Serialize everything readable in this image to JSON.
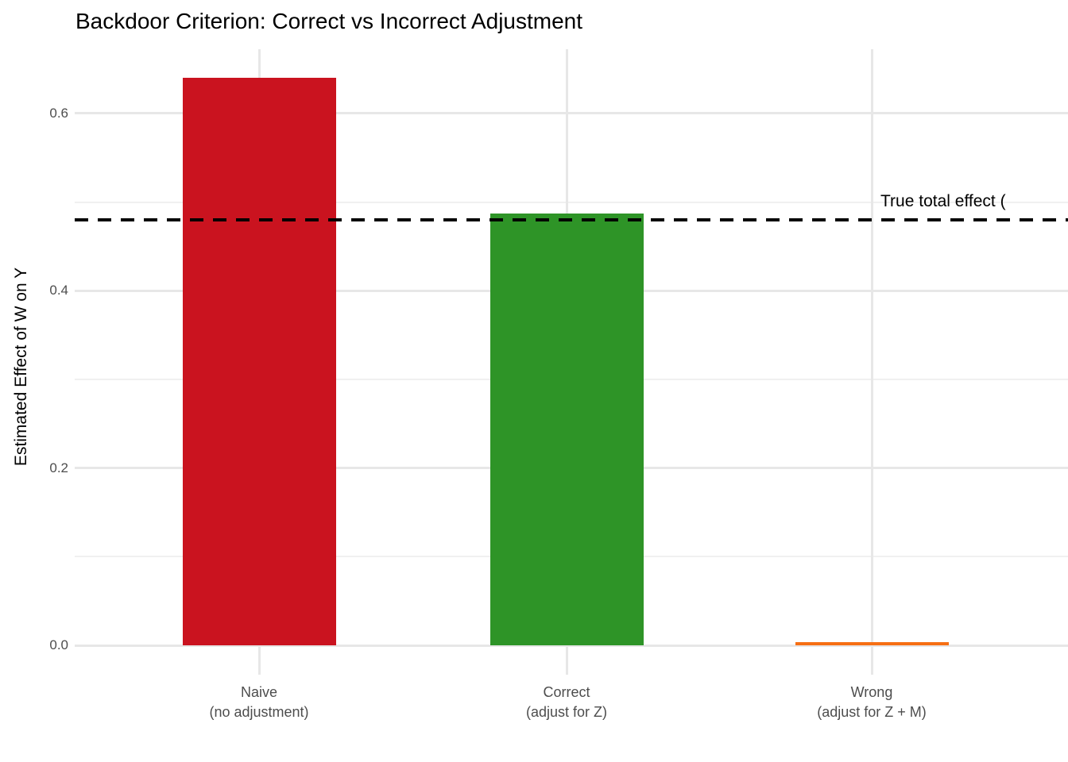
{
  "chart_data": {
    "type": "bar",
    "title": "Backdoor Criterion: Correct vs Incorrect Adjustment",
    "xlabel": "",
    "ylabel": "Estimated Effect of W on Y",
    "categories": [
      {
        "label": "Naive",
        "sublabel": "(no adjustment)"
      },
      {
        "label": "Correct",
        "sublabel": "(adjust for Z)"
      },
      {
        "label": "Wrong",
        "sublabel": "(adjust for Z + M)"
      }
    ],
    "values": [
      0.64,
      0.487,
      0.004
    ],
    "bar_colors": [
      "#ca131f",
      "#2e9427",
      "#f66f14"
    ],
    "reference_line": {
      "value": 0.48,
      "label": "True total effect (",
      "style": "dashed",
      "color": "#000000"
    },
    "ylim": [
      -0.033,
      0.672
    ],
    "yticks": [
      0.0,
      0.2,
      0.4,
      0.6
    ],
    "ytick_labels": [
      "0.0",
      "0.2",
      "0.4",
      "0.6"
    ],
    "minor_gridlines": [
      0.1,
      0.3,
      0.5
    ],
    "grid": true,
    "legend": false,
    "background": "#ffffff",
    "gridline_color_major": "#e7e7e7",
    "gridline_color_minor": "#f0f0f0",
    "tick_label_color": "#4d4d4d"
  }
}
